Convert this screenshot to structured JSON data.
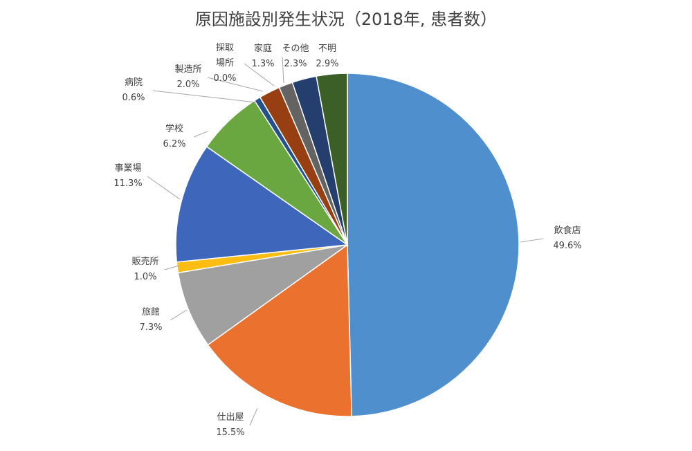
{
  "chart_data": {
    "type": "pie",
    "title": "原因施設別発生状況（2018年, 患者数）",
    "categories": [
      "飲食店",
      "仕出屋",
      "旅館",
      "販売所",
      "事業場",
      "学校",
      "病院",
      "製造所",
      "採取\n場所",
      "家庭",
      "その他",
      "不明"
    ],
    "values": [
      49.6,
      15.5,
      7.3,
      1.0,
      11.3,
      6.2,
      0.6,
      2.0,
      0.0,
      1.3,
      2.3,
      2.9
    ],
    "value_labels": [
      "49.6%",
      "15.5%",
      "7.3%",
      "1.0%",
      "11.3%",
      "6.2%",
      "0.6%",
      "2.0%",
      "0.0%",
      "1.3%",
      "2.3%",
      "2.9%"
    ],
    "colors": [
      "#4f8fce",
      "#ea722e",
      "#a0a0a0",
      "#fcbd13",
      "#3e67bc",
      "#6aa740",
      "#24518c",
      "#973f13",
      "#5f5f5f",
      "#636363",
      "#243f6e",
      "#3b5f26"
    ]
  }
}
